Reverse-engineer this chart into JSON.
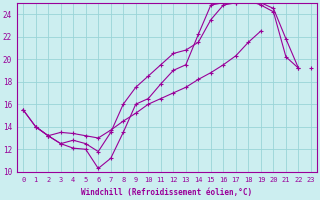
{
  "xlabel": "Windchill (Refroidissement éolien,°C)",
  "background_color": "#cceef0",
  "grid_color": "#99d4d8",
  "line_color": "#990099",
  "xlim": [
    -0.5,
    23.5
  ],
  "ylim": [
    10,
    25
  ],
  "yticks": [
    10,
    12,
    14,
    16,
    18,
    20,
    22,
    24
  ],
  "xticks": [
    0,
    1,
    2,
    3,
    4,
    5,
    6,
    7,
    8,
    9,
    10,
    11,
    12,
    13,
    14,
    15,
    16,
    17,
    18,
    19,
    20,
    21,
    22,
    23
  ],
  "line1_x": [
    0,
    1,
    2,
    3,
    4,
    5,
    6,
    7,
    8,
    9,
    10,
    11,
    12,
    13,
    14,
    15,
    16,
    17,
    18,
    19,
    20,
    21,
    22
  ],
  "line1_y": [
    15.5,
    14.0,
    13.2,
    12.5,
    12.1,
    12.0,
    10.3,
    11.2,
    13.5,
    16.0,
    16.5,
    17.8,
    19.0,
    19.5,
    22.2,
    24.8,
    25.0,
    25.0,
    25.2,
    24.8,
    24.2,
    20.2,
    19.2
  ],
  "line2_x": [
    0,
    1,
    2,
    3,
    4,
    5,
    6,
    7,
    8,
    9,
    10,
    11,
    12,
    13,
    14,
    15,
    16,
    17,
    18,
    19,
    20,
    21,
    22,
    23
  ],
  "line2_y": [
    15.5,
    14.0,
    13.2,
    13.5,
    13.4,
    13.2,
    13.0,
    13.7,
    14.5,
    15.2,
    16.0,
    16.5,
    17.0,
    17.5,
    18.2,
    18.8,
    19.5,
    20.3,
    21.5,
    22.5,
    null,
    null,
    null,
    19.2
  ],
  "line3_x": [
    1,
    2,
    3,
    4,
    5,
    6,
    7,
    8,
    9,
    10,
    11,
    12,
    13,
    14,
    15,
    16,
    17,
    18,
    19,
    20,
    21,
    22
  ],
  "line3_y": [
    14.0,
    13.2,
    12.5,
    12.8,
    12.5,
    11.8,
    13.5,
    16.0,
    17.5,
    18.5,
    19.5,
    20.5,
    20.8,
    21.5,
    23.5,
    24.8,
    25.0,
    25.2,
    25.0,
    24.5,
    21.8,
    19.2
  ]
}
